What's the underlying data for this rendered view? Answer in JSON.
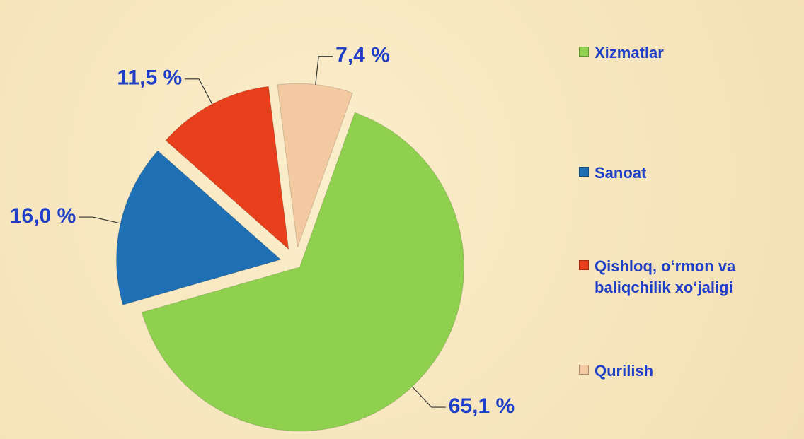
{
  "chart_data": {
    "type": "pie",
    "categories": [
      "Xizmatlar",
      "Sanoat",
      "Qishloq, o‘rmon va baliqchilik  xo‘jaligi",
      "Qurilish"
    ],
    "values": [
      65.1,
      16.0,
      11.5,
      7.4
    ],
    "value_labels": [
      "65,1 %",
      "16,0 %",
      "11,5 %",
      "7,4 %"
    ],
    "colors": [
      "#8fd14f",
      "#1f6fb5",
      "#e8401c",
      "#f2c9a0"
    ],
    "legend": "right"
  }
}
